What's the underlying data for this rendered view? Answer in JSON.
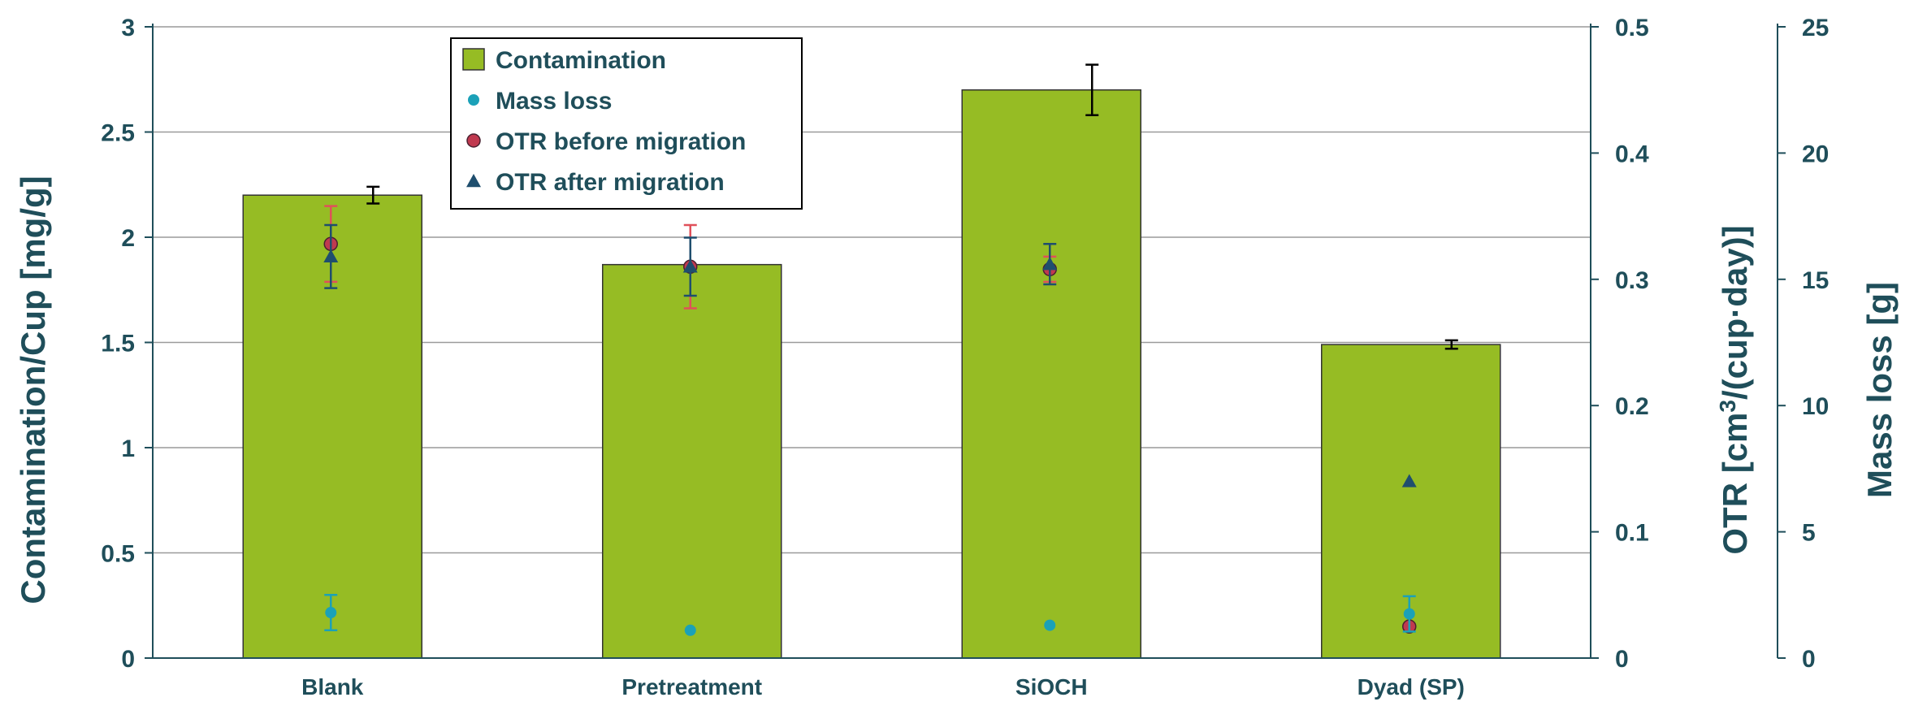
{
  "chart_data": {
    "type": "bar",
    "title": "",
    "categories": [
      "Blank",
      "Pretreatment",
      "SiOCH",
      "Dyad (SP)"
    ],
    "axes": {
      "left": {
        "label": "Contamination/Cup   [mg/g]",
        "range": [
          0,
          3
        ],
        "ticks": [
          "0",
          "0.5",
          "1",
          "1.5",
          "2",
          "2.5",
          "3"
        ]
      },
      "right1": {
        "label_prefix": "OTR   [cm",
        "label_sup": "3",
        "label_suffix": "/(cup·day)]",
        "range": [
          0,
          0.5
        ],
        "ticks": [
          "0",
          "0.1",
          "0.2",
          "0.3",
          "0.4",
          "0.5"
        ]
      },
      "right2": {
        "label": "Mass loss   [g]",
        "range": [
          0,
          25
        ],
        "ticks": [
          "0",
          "5",
          "10",
          "15",
          "20",
          "25"
        ]
      }
    },
    "grid": true,
    "legend_position": "top-center",
    "series": [
      {
        "name": "Contamination",
        "kind": "bar",
        "axis": "left",
        "color": "#96bc24",
        "values": [
          2.2,
          1.87,
          2.7,
          1.49
        ],
        "err": [
          0.04,
          0.0,
          0.12,
          0.02
        ],
        "err_color": "#000000"
      },
      {
        "name": "Mass loss",
        "kind": "point",
        "marker": "circle",
        "axis": "right2",
        "color": "#1ba1b8",
        "values": [
          1.8,
          1.1,
          1.3,
          1.75
        ],
        "err": [
          0.7,
          0.0,
          0.0,
          0.7
        ],
        "err_color": "#1ba1b8"
      },
      {
        "name": "OTR before migration",
        "kind": "point",
        "marker": "circle-red",
        "axis": "right1",
        "color": "#c0394f",
        "values": [
          0.328,
          0.31,
          0.308,
          0.025
        ],
        "err": [
          0.03,
          0.033,
          0.01,
          0.0
        ],
        "err_color": "#e0505a"
      },
      {
        "name": "OTR after migration",
        "kind": "point",
        "marker": "triangle",
        "axis": "right1",
        "color": "#1f4e6e",
        "values": [
          0.318,
          0.31,
          0.312,
          0.14
        ],
        "err": [
          0.025,
          0.023,
          0.016,
          0.0
        ],
        "err_color": "#1f4e6e"
      }
    ]
  }
}
